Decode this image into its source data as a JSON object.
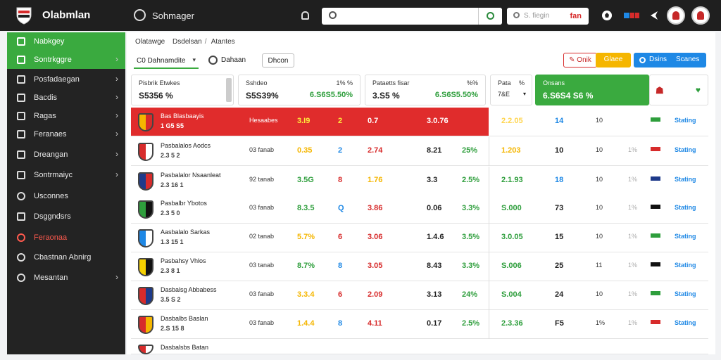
{
  "header": {
    "app_title": "Olabmlan",
    "manager_label": "Sohmager",
    "search_placeholder": "",
    "lang_placeholder": "S. fiegin",
    "lang_value": "fan",
    "icons": [
      "logo-icon",
      "steering-icon",
      "bell-icon",
      "search-icon",
      "globe-icon",
      "ball-icon",
      "alert-count-icon",
      "arrow-icon",
      "avatar-icon"
    ]
  },
  "sidebar": {
    "items": [
      {
        "label": "Nabkgey",
        "active": true,
        "chevron": false
      },
      {
        "label": "Sontrkggre",
        "active": true,
        "chevron": true
      },
      {
        "label": "Posfadaegan",
        "active": false,
        "chevron": true
      },
      {
        "label": "Bacdis",
        "active": false,
        "chevron": true
      },
      {
        "label": "Ragas",
        "active": false,
        "chevron": true
      },
      {
        "label": "Feranaes",
        "active": false,
        "chevron": true
      },
      {
        "label": "Dreangan",
        "active": false,
        "chevron": true
      },
      {
        "label": "Sontrmaiyc",
        "active": false,
        "chevron": true
      },
      {
        "label": "Usconnes",
        "active": false,
        "chevron": false
      },
      {
        "label": "Dsggndsrs",
        "active": false,
        "chevron": false
      },
      {
        "label": "Feraonaa",
        "active": false,
        "chevron": false,
        "red": true
      },
      {
        "label": "Cbastnan Abnirg",
        "active": false,
        "chevron": false
      },
      {
        "label": "Mesantan",
        "active": false,
        "chevron": true
      }
    ]
  },
  "main": {
    "breadcrumb": [
      "Olatawge",
      "Dsdelsan",
      "Atantes"
    ],
    "filters": {
      "team_filter": "C0 Dahnamdite",
      "region_filter": "Dahaan",
      "view_toggle": "Dhcon"
    },
    "actions": {
      "alert_label": "Onik",
      "yellow_label": "Glaee",
      "blue_label": "Dsins",
      "blue_label2": "Scanes"
    },
    "cards": [
      {
        "title": "Pisbrik Etwkes",
        "value": "S5356 %"
      },
      {
        "title": "Sshdeo",
        "title_right": "1% %",
        "value": "S5S39%",
        "value_right": "6.S6S5.50%"
      },
      {
        "title": "Pataetts fisar",
        "title_right": "%%",
        "value": "3.S5 %",
        "value_right": "6.S6S5.50%"
      },
      {
        "title": "Pata",
        "title_right": "%",
        "value": "7&E",
        "select": true
      },
      {
        "title": "Onsans",
        "value": "6.S6S4 S6 %"
      },
      {
        "title": "",
        "icons": [
          "badge-icon",
          "shield-check-icon"
        ]
      }
    ],
    "table": {
      "rows": [
        {
          "name": "Bas Blasbaayis",
          "sub": "1 G5 S5",
          "m1": "Hesaabes",
          "c1": "3.I9",
          "c2": "2",
          "c3": "0.7",
          "c4": "3.0.76",
          "c5": "",
          "c6": "2.2.05",
          "c7": "14",
          "c8": "10",
          "c9": "",
          "status": "Stating",
          "highlight": true,
          "c1_color": "#ffeb3b",
          "c6_color": "#ffd54f",
          "c7_color": "#1e88e5"
        },
        {
          "name": "Pasbalalos Aodcs",
          "sub": "2.3 5 2",
          "m1": "03 fanab",
          "c1": "0.35",
          "c2": "2",
          "c3": "2.74",
          "c4": "8.21",
          "c5": "25%",
          "c6": "1.203",
          "c7": "10",
          "c8": "10",
          "c9": "1%",
          "status": "Stating",
          "c1_color": "#f5b600",
          "c3_color": "#d72b2b",
          "c5_color": "#2e9e3c",
          "c6_color": "#f5b600"
        },
        {
          "name": "Pasbalalor Nsaanleat",
          "sub": "2.3 16 1",
          "m1": "92 tanab",
          "c1": "3.5G",
          "c2": "8",
          "c3": "1.76",
          "c4": "3.3",
          "c5": "2.5%",
          "c6": "2.1.93",
          "c7": "18",
          "c8": "10",
          "c9": "1%",
          "status": "Stating",
          "c1_color": "#2e9e3c",
          "c3_color": "#f5b600",
          "c5_color": "#2e9e3c",
          "c6_color": "#2e9e3c",
          "c7_color": "#1e88e5"
        },
        {
          "name": "Pasbalbr Ybotos",
          "sub": "2.3 5 0",
          "m1": "03 fanab",
          "c1": "8.3.5",
          "c2": "Q",
          "c3": "3.86",
          "c4": "0.06",
          "c5": "3.3%",
          "c6": "S.000",
          "c7": "73",
          "c8": "10",
          "c9": "1%",
          "status": "Stating",
          "c1_color": "#2e9e3c",
          "c3_color": "#d72b2b",
          "c5_color": "#2e9e3c",
          "c6_color": "#2e9e3c"
        },
        {
          "name": "Aasbalalo Sarkas",
          "sub": "1.3 15 1",
          "m1": "02 tanab",
          "c1": "5.7%",
          "c2": "6",
          "c3": "3.06",
          "c4": "1.4.6",
          "c5": "3.5%",
          "c6": "3.0.05",
          "c7": "15",
          "c8": "10",
          "c9": "1%",
          "status": "Stating",
          "c1_color": "#f5b600",
          "c3_color": "#d72b2b",
          "c5_color": "#2e9e3c",
          "c6_color": "#2e9e3c"
        },
        {
          "name": "Pasbahsy Vhlos",
          "sub": "2.3 8 1",
          "m1": "03 tanab",
          "c1": "8.7%",
          "c2": "8",
          "c3": "3.05",
          "c4": "8.43",
          "c5": "3.3%",
          "c6": "S.006",
          "c7": "25",
          "c8": "11",
          "c9": "1%",
          "status": "Stating",
          "c1_color": "#2e9e3c",
          "c3_color": "#d72b2b",
          "c5_color": "#2e9e3c",
          "c6_color": "#2e9e3c"
        },
        {
          "name": "Dasbalsg Abbabess",
          "sub": "3.5 S 2",
          "m1": "03 fanab",
          "c1": "3.3.4",
          "c2": "6",
          "c3": "2.09",
          "c4": "3.13",
          "c5": "24%",
          "c6": "S.004",
          "c7": "24",
          "c8": "10",
          "c9": "1%",
          "status": "Stating",
          "c1_color": "#f5b600",
          "c3_color": "#d72b2b",
          "c5_color": "#2e9e3c",
          "c6_color": "#2e9e3c"
        },
        {
          "name": "Dasbalbs Baslan",
          "sub": "2.S 15 8",
          "m1": "03 fanab",
          "c1": "1.4.4",
          "c2": "8",
          "c3": "4.11",
          "c4": "0.17",
          "c5": "2.5%",
          "c6": "2.3.36",
          "c7": "F5",
          "c8": "1%",
          "c9": "1%",
          "status": "Stating",
          "c1_color": "#f5b600",
          "c3_color": "#d72b2b",
          "c5_color": "#2e9e3c",
          "c6_color": "#2e9e3c"
        },
        {
          "name": "Dasbalsbs Batan",
          "sub": "",
          "m1": "",
          "c1": "",
          "c2": "",
          "c3": "",
          "c4": "",
          "c5": "",
          "c6": "",
          "c7": "",
          "c8": "",
          "c9": "",
          "status": ""
        }
      ]
    }
  },
  "colors": {
    "accent_green": "#3aaa3f",
    "header_bg": "#1f1f1f",
    "highlight_red": "#e02c2c",
    "link_blue": "#1e88e5",
    "warning_yellow": "#f5b600"
  }
}
